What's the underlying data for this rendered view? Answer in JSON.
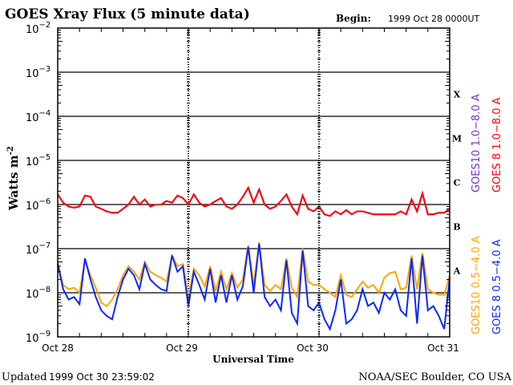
{
  "title": "GOES Xray Flux (5 minute data)",
  "begin_label": "Begin:",
  "begin_value": "1999 Oct 28 0000UT",
  "updated_label": "Updated",
  "updated_value": "1999 Oct 30 23:59:02",
  "credit": "NOAA/SEC Boulder, CO USA",
  "chart_data": {
    "type": "line",
    "title": "GOES Xray Flux (5 minute data)",
    "xlabel": "Universal Time",
    "ylabel": "Watts m",
    "ylabel_exp": "-2",
    "yscale": "log",
    "ylim": [
      1e-09,
      0.01
    ],
    "xlim": [
      "1999-10-28 00:00",
      "1999-10-31 00:00"
    ],
    "x_step": "1 hour",
    "grid": "horizontal lines at each decade, dotted vertical lines at day boundaries",
    "x_ticks": [
      "Oct 28",
      "Oct 29",
      "Oct 30",
      "Oct 31"
    ],
    "y_ticks": [
      {
        "base": "10",
        "exp": "-2"
      },
      {
        "base": "10",
        "exp": "-3"
      },
      {
        "base": "10",
        "exp": "-4"
      },
      {
        "base": "10",
        "exp": "-5"
      },
      {
        "base": "10",
        "exp": "-6"
      },
      {
        "base": "10",
        "exp": "-7"
      },
      {
        "base": "10",
        "exp": "-8"
      },
      {
        "base": "10",
        "exp": "-9"
      }
    ],
    "flare_classes": [
      "X",
      "M",
      "C",
      "B",
      "A"
    ],
    "legend_placement": "right, rotated",
    "series": [
      {
        "name": "GOES10 1.0−8.0 A",
        "color": "#7a30c8",
        "values": [
          1.7e-06,
          1.1e-06,
          9e-07,
          8.5e-07,
          9e-07,
          1.6e-06,
          1.5e-06,
          9e-07,
          8e-07,
          7e-07,
          6.5e-07,
          6.5e-07,
          8e-07,
          1e-06,
          1.5e-06,
          1e-06,
          1.3e-06,
          9e-07,
          1e-06,
          1e-06,
          1.2e-06,
          1.1e-06,
          1.6e-06,
          1.4e-06,
          1e-06,
          1.7e-06,
          1.1e-06,
          9e-07,
          1e-06,
          1.2e-06,
          1.4e-06,
          9e-07,
          8e-07,
          1e-06,
          1.5e-06,
          2.4e-06,
          1.1e-06,
          2.2e-06,
          1e-06,
          8e-07,
          9e-07,
          1.2e-06,
          1.7e-06,
          9e-07,
          6e-07,
          1.6e-06,
          8e-07,
          7e-07,
          9e-07,
          6e-07,
          5.5e-07,
          7e-07,
          6e-07,
          7.5e-07,
          6e-07,
          7e-07,
          7e-07,
          6.5e-07,
          6e-07,
          6e-07,
          6e-07,
          6e-07,
          6e-07,
          7e-07,
          6e-07,
          1.3e-06,
          7e-07,
          1.8e-06,
          6e-07,
          6e-07,
          6.5e-07,
          6.5e-07,
          8e-07
        ]
      },
      {
        "name": "GOES 8 1.0−8.0 A",
        "color": "#ff0000",
        "values": [
          1.7e-06,
          1.1e-06,
          9e-07,
          8.5e-07,
          9e-07,
          1.6e-06,
          1.5e-06,
          9e-07,
          8e-07,
          7e-07,
          6.5e-07,
          6.5e-07,
          8e-07,
          1e-06,
          1.5e-06,
          1e-06,
          1.3e-06,
          9e-07,
          1e-06,
          1e-06,
          1.2e-06,
          1.1e-06,
          1.6e-06,
          1.4e-06,
          1e-06,
          1.7e-06,
          1.1e-06,
          9e-07,
          1e-06,
          1.2e-06,
          1.4e-06,
          9e-07,
          8e-07,
          1e-06,
          1.5e-06,
          2.4e-06,
          1.1e-06,
          2.2e-06,
          1e-06,
          8e-07,
          9e-07,
          1.2e-06,
          1.7e-06,
          9e-07,
          6e-07,
          1.6e-06,
          8e-07,
          7e-07,
          9e-07,
          6e-07,
          5.5e-07,
          7e-07,
          6e-07,
          7.5e-07,
          6e-07,
          7e-07,
          7e-07,
          6.5e-07,
          6e-07,
          6e-07,
          6e-07,
          6e-07,
          6e-07,
          7e-07,
          6e-07,
          1.3e-06,
          7e-07,
          1.8e-06,
          6e-07,
          6e-07,
          6.5e-07,
          6.5e-07,
          8e-07
        ]
      },
      {
        "name": "GOES10 0.5−4.0 A",
        "color": "#ffa500",
        "values": [
          5e-08,
          1.5e-08,
          1.2e-08,
          1.3e-08,
          1e-08,
          5.5e-08,
          2.5e-08,
          1.3e-08,
          6e-09,
          5e-09,
          7e-09,
          1.2e-08,
          2.5e-08,
          4e-08,
          3e-08,
          2e-08,
          5e-08,
          3e-08,
          2.5e-08,
          2.2e-08,
          1.8e-08,
          7e-08,
          4e-08,
          4.5e-08,
          8e-09,
          3.5e-08,
          2.5e-08,
          1.4e-08,
          4e-08,
          1.1e-08,
          3e-08,
          1.2e-08,
          2.8e-08,
          1.3e-08,
          2e-08,
          1.2e-07,
          1.5e-08,
          1.4e-07,
          1.5e-08,
          1.1e-08,
          1.5e-08,
          1.2e-08,
          6e-08,
          1.3e-08,
          8e-09,
          1e-07,
          1.8e-08,
          1.5e-08,
          1.5e-08,
          1.2e-08,
          1e-08,
          8e-09,
          2.5e-08,
          9e-09,
          8e-09,
          1.2e-08,
          1.8e-08,
          1.3e-08,
          1.5e-08,
          1e-08,
          2.2e-08,
          2.8e-08,
          3e-08,
          1.2e-08,
          1.3e-08,
          7e-08,
          1.2e-08,
          8e-08,
          1.2e-08,
          1e-08,
          9e-09,
          9e-09,
          2.5e-08
        ]
      },
      {
        "name": "GOES 8 0.5−4.0 A",
        "color": "#0a28ff",
        "values": [
          4.5e-08,
          1.2e-08,
          7e-09,
          8e-09,
          5.5e-09,
          6e-08,
          2e-08,
          8e-09,
          4e-09,
          3e-09,
          2.5e-09,
          8e-09,
          2e-08,
          3.5e-08,
          2.5e-08,
          1.2e-08,
          4.5e-08,
          2e-08,
          1.5e-08,
          1.2e-08,
          1.1e-08,
          7e-08,
          3e-08,
          4e-08,
          5e-09,
          3e-08,
          1.5e-08,
          7e-09,
          3.5e-08,
          6e-09,
          2.5e-08,
          6e-09,
          2.5e-08,
          7e-09,
          1.4e-08,
          1.1e-07,
          1e-08,
          1.3e-07,
          8e-09,
          5e-09,
          7e-09,
          4e-09,
          5.5e-08,
          3.5e-09,
          2e-09,
          9e-08,
          5e-09,
          4e-09,
          6e-09,
          2.5e-09,
          1.5e-09,
          4e-09,
          2e-08,
          2e-09,
          2.5e-09,
          4e-09,
          1.2e-08,
          5e-09,
          6e-09,
          3.5e-09,
          1e-08,
          7e-09,
          1.2e-08,
          4e-09,
          3e-09,
          6e-08,
          2e-09,
          7e-08,
          4e-09,
          5e-09,
          3e-09,
          1.5e-09,
          2.2e-08
        ]
      }
    ]
  }
}
